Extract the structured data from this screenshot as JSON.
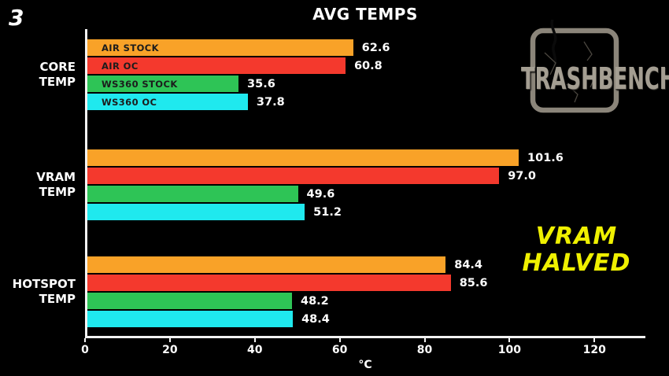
{
  "page": {
    "number": "3"
  },
  "logo": {
    "text": "TRASHBENCH"
  },
  "annotation": {
    "line1": "VRAM",
    "line2": "HALVED",
    "color": "#eff000"
  },
  "colors": {
    "background": "#000000",
    "axis": "#f2f2f2",
    "text": "#ffffff",
    "in_bar_label": "#1c1c1c",
    "logo_gray": "#a49e92"
  },
  "chart_data": {
    "type": "bar",
    "orientation": "horizontal",
    "title": "AVG TEMPS",
    "xlabel": "°C",
    "xlim": [
      0,
      132
    ],
    "xticks": [
      "0",
      "20",
      "40",
      "60",
      "80",
      "100",
      "120"
    ],
    "grid": false,
    "legend_position": "labels inside first group's bars",
    "groups": [
      {
        "line1": "CORE",
        "line2": "TEMP"
      },
      {
        "line1": "VRAM",
        "line2": "TEMP"
      },
      {
        "line1": "HOTSPOT",
        "line2": "TEMP"
      }
    ],
    "series": [
      {
        "name": "AIR STOCK",
        "color": "#f9a228",
        "values": [
          62.6,
          101.6,
          84.4
        ]
      },
      {
        "name": "AIR OC",
        "color": "#f4392d",
        "values": [
          60.8,
          97.0,
          85.6
        ]
      },
      {
        "name": "WS360 STOCK",
        "color": "#2ec456",
        "values": [
          35.6,
          49.6,
          48.2
        ]
      },
      {
        "name": "WS360 OC",
        "color": "#1fe9ee",
        "values": [
          37.8,
          51.2,
          48.4
        ]
      }
    ]
  }
}
